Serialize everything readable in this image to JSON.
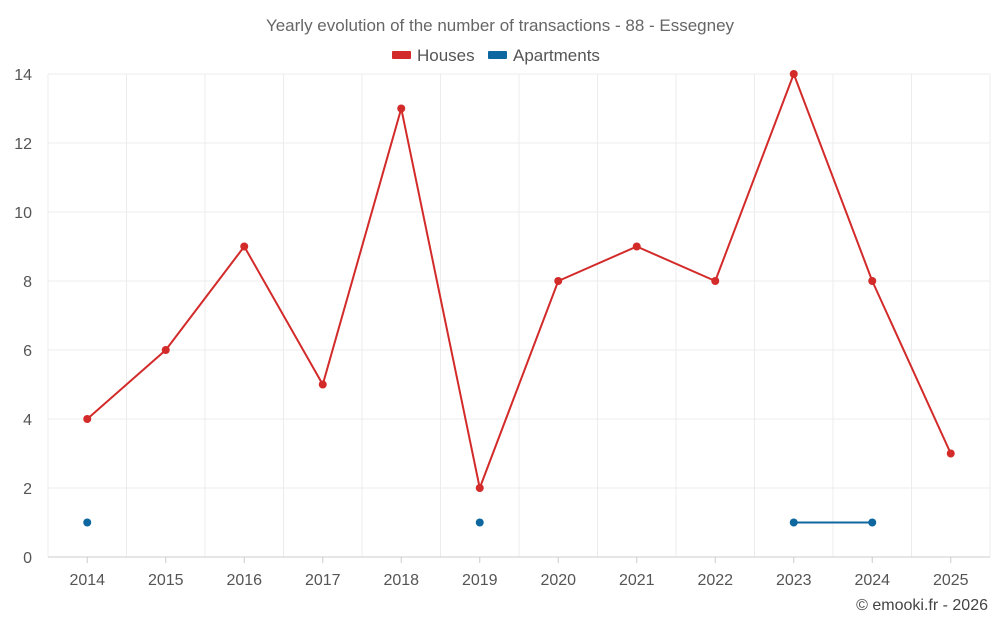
{
  "chart_data": {
    "type": "line",
    "title": "Yearly evolution of the number of transactions - 88 - Essegney",
    "categories": [
      "2014",
      "2015",
      "2016",
      "2017",
      "2018",
      "2019",
      "2020",
      "2021",
      "2022",
      "2023",
      "2024",
      "2025"
    ],
    "series": [
      {
        "name": "Houses",
        "color": "#d32a2a",
        "values": [
          4,
          6,
          9,
          5,
          13,
          2,
          8,
          9,
          8,
          14,
          8,
          3
        ]
      },
      {
        "name": "Apartments",
        "color": "#0f67a0",
        "values": [
          1,
          null,
          null,
          null,
          null,
          1,
          null,
          null,
          null,
          1,
          1,
          null
        ]
      }
    ],
    "ylim": [
      0,
      14
    ],
    "yticks": [
      0,
      2,
      4,
      6,
      8,
      10,
      12,
      14
    ],
    "xlabel": "",
    "ylabel": "",
    "grid": true,
    "legend_position": "top-center"
  },
  "credit": "© emooki.fr - 2026"
}
